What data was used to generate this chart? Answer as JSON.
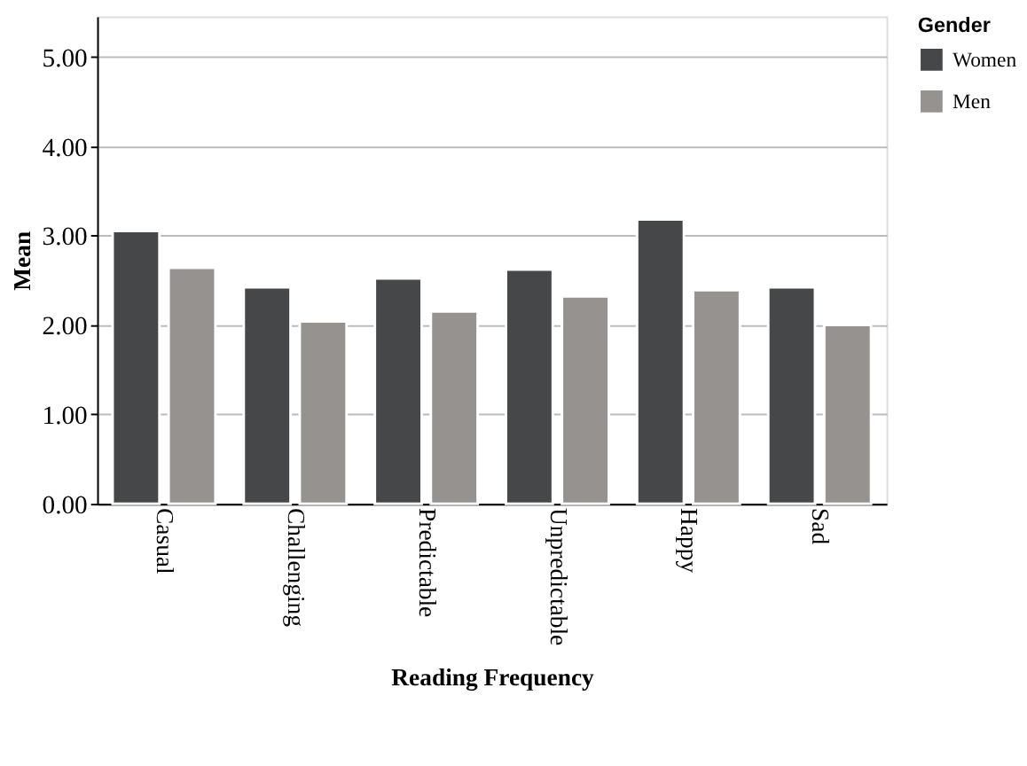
{
  "chart_data": {
    "type": "bar",
    "xlabel": "Reading Frequency",
    "ylabel": "Mean",
    "legend_title": "Gender",
    "categories": [
      "Casual",
      "Challenging",
      "Predictable",
      "Unpredictable",
      "Happy",
      "Sad"
    ],
    "series": [
      {
        "name": "Women",
        "color": "#464749",
        "values": [
          3.05,
          2.42,
          2.52,
          2.62,
          3.18,
          2.42
        ]
      },
      {
        "name": "Men",
        "color": "#959290",
        "values": [
          2.64,
          2.04,
          2.15,
          2.32,
          2.39,
          2.0
        ]
      }
    ],
    "ylim": [
      0,
      5.45
    ],
    "yticks": [
      {
        "value": 0,
        "label": "0.00"
      },
      {
        "value": 1,
        "label": "1.00"
      },
      {
        "value": 2,
        "label": "2.00"
      },
      {
        "value": 3,
        "label": "3.00"
      },
      {
        "value": 4,
        "label": "4.00"
      },
      {
        "value": 5,
        "label": "5.00"
      }
    ],
    "grid": "y",
    "legend": "top right"
  }
}
